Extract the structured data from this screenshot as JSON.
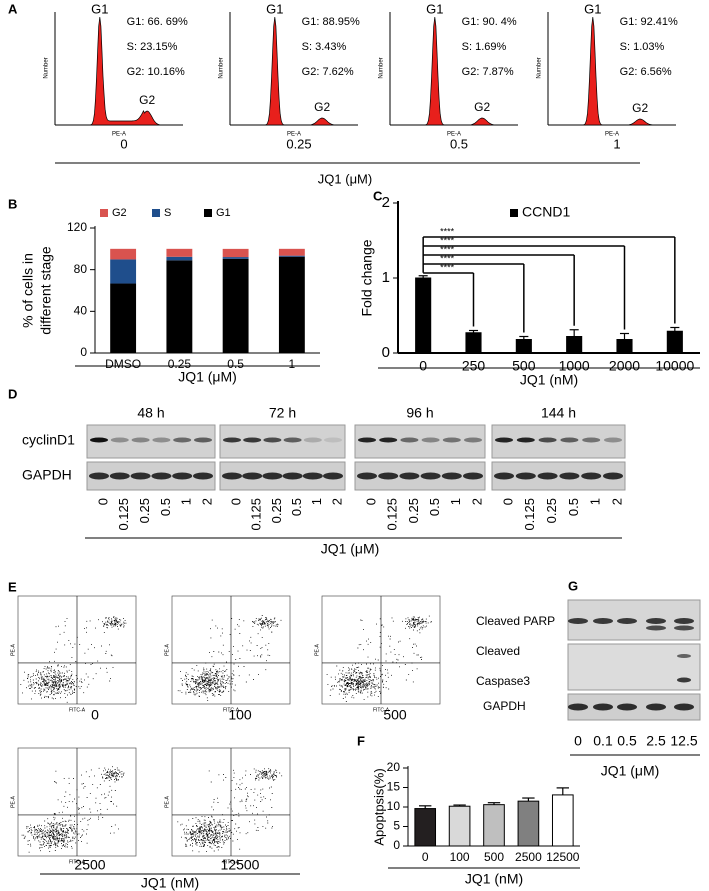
{
  "panel_a": {
    "label": "A",
    "plots": [
      {
        "peaks": [
          "G1",
          "G2"
        ],
        "stats": [
          "G1: 66. 69%",
          "S: 23.15%",
          "G2: 10.16%"
        ],
        "x_label": "0"
      },
      {
        "peaks": [
          "G1",
          "G2"
        ],
        "stats": [
          "G1: 88.95%",
          "S: 3.43%",
          "G2: 7.62%"
        ],
        "x_label": "0.25"
      },
      {
        "peaks": [
          "G1",
          "G2"
        ],
        "stats": [
          "G1: 90. 4%",
          "S: 1.69%",
          "G2: 7.87%"
        ],
        "x_label": "0.5"
      },
      {
        "peaks": [
          "G1",
          "G2"
        ],
        "stats": [
          "G1: 92.41%",
          "S: 1.03%",
          "G2: 6.56%"
        ],
        "x_label": "1"
      }
    ],
    "x_axis_label": "PE-A",
    "y_axis_label": "Number",
    "axis_title": "JQ1 (μM)"
  },
  "chart_data": [
    {
      "type": "stacked_bar",
      "label": "B",
      "categories": [
        "DMSO",
        "0.25",
        "0.5",
        "1"
      ],
      "series": [
        {
          "name": "G1",
          "color": "#000000",
          "values": [
            66.69,
            88.95,
            90.4,
            92.41
          ]
        },
        {
          "name": "S",
          "color": "#1f4e8c",
          "values": [
            23.15,
            3.43,
            1.69,
            1.03
          ]
        },
        {
          "name": "G2",
          "color": "#d9534f",
          "values": [
            10.16,
            7.62,
            7.87,
            6.56
          ]
        }
      ],
      "ylim": [
        0,
        120
      ],
      "yticks": [
        0,
        40,
        80,
        120
      ],
      "y_label": [
        "% of cells in",
        "different stage"
      ],
      "x_label": "JQ1 (μM)",
      "legend": "top"
    },
    {
      "type": "bar",
      "label": "C",
      "categories": [
        "0",
        "250",
        "500",
        "1000",
        "2000",
        "10000"
      ],
      "series": [
        {
          "name": "CCND1",
          "color": "#000000",
          "values": [
            1.0,
            0.27,
            0.18,
            0.22,
            0.18,
            0.29
          ],
          "errors": [
            0.03,
            0.03,
            0.04,
            0.09,
            0.08,
            0.05
          ]
        }
      ],
      "ylim": [
        0,
        2
      ],
      "yticks": [
        0,
        1,
        2
      ],
      "y_label": [
        "Fold change"
      ],
      "x_label": "JQ1 (nM)",
      "annotations": [
        "****",
        "****",
        "****",
        "****",
        "****"
      ],
      "legend": "top"
    },
    {
      "type": "bar",
      "label": "F",
      "categories": [
        "0",
        "100",
        "500",
        "2500",
        "12500"
      ],
      "series": [
        {
          "values": [
            9.6,
            10.2,
            10.6,
            11.5,
            13.1
          ],
          "errors": [
            0.7,
            0.3,
            0.5,
            0.8,
            1.8
          ],
          "colors": [
            "#231f20",
            "#d9d9d9",
            "#bfbfbf",
            "#808080",
            "#ffffff"
          ]
        }
      ],
      "ylim": [
        0,
        20
      ],
      "yticks": [
        0,
        5,
        10,
        15,
        20
      ],
      "y_label": [
        "Apoptpsis(%)"
      ],
      "x_label": "JQ1 (nM)"
    }
  ],
  "panel_d": {
    "label": "D",
    "times": [
      "48 h",
      "72 h",
      "96 h",
      "144 h"
    ],
    "rows": [
      "cyclinD1",
      "GAPDH"
    ],
    "lanes": [
      "0",
      "0.125",
      "0.25",
      "0.5",
      "1",
      "2"
    ],
    "axis_title": "JQ1 (μM)"
  },
  "panel_e": {
    "label": "E",
    "plots": [
      {
        "label": "0"
      },
      {
        "label": "100"
      },
      {
        "label": "500"
      },
      {
        "label": "2500"
      },
      {
        "label": "12500"
      }
    ],
    "x_axis_label": "FITC-A",
    "y_axis_label": "PE-A",
    "axis_title": "JQ1 (nM)"
  },
  "panel_g": {
    "label": "G",
    "rows": [
      "Cleaved PARP",
      "Cleaved",
      "Caspase3",
      "GAPDH"
    ],
    "lanes": [
      "0",
      "0.1",
      "0.5",
      "2.5",
      "12.5"
    ],
    "axis_title": "JQ1 (μM)"
  }
}
